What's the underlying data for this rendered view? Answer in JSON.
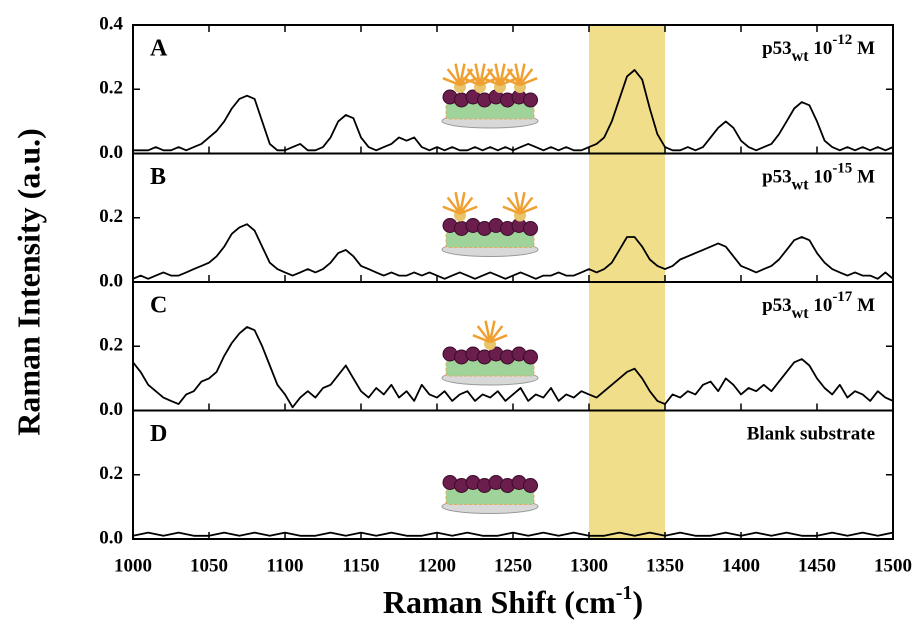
{
  "chart_data": [
    {
      "type": "line",
      "label": "A",
      "annotation": {
        "base": "p53",
        "sub": "wt",
        "mid": " 10",
        "sup": "-12",
        "end": " M"
      },
      "color": "#000000",
      "highlight": [
        1300,
        1350
      ],
      "highlight_color": "#f0de8a",
      "xlim": [
        1000,
        1500
      ],
      "ylim": [
        0,
        0.4
      ],
      "yticks": [
        {
          "value": 0,
          "label": "0.0"
        },
        0.2,
        0.4
      ],
      "x": [
        1000,
        1005,
        1010,
        1015,
        1020,
        1025,
        1030,
        1035,
        1040,
        1045,
        1050,
        1055,
        1060,
        1065,
        1070,
        1075,
        1080,
        1085,
        1090,
        1095,
        1100,
        1105,
        1110,
        1115,
        1120,
        1125,
        1130,
        1135,
        1140,
        1145,
        1150,
        1155,
        1160,
        1165,
        1170,
        1175,
        1180,
        1185,
        1190,
        1195,
        1200,
        1205,
        1210,
        1215,
        1220,
        1225,
        1230,
        1235,
        1240,
        1245,
        1250,
        1255,
        1260,
        1265,
        1270,
        1275,
        1280,
        1285,
        1290,
        1295,
        1300,
        1305,
        1310,
        1315,
        1320,
        1325,
        1330,
        1335,
        1340,
        1345,
        1350,
        1355,
        1360,
        1365,
        1370,
        1375,
        1380,
        1385,
        1390,
        1395,
        1400,
        1405,
        1410,
        1415,
        1420,
        1425,
        1430,
        1435,
        1440,
        1445,
        1450,
        1455,
        1460,
        1465,
        1470,
        1475,
        1480,
        1485,
        1490,
        1495,
        1500
      ],
      "values": [
        0.01,
        0.01,
        0.01,
        0.02,
        0.01,
        0.01,
        0.02,
        0.01,
        0.02,
        0.03,
        0.05,
        0.07,
        0.1,
        0.14,
        0.17,
        0.18,
        0.17,
        0.1,
        0.03,
        0.01,
        0.01,
        0.02,
        0.03,
        0.01,
        0.01,
        0.02,
        0.05,
        0.1,
        0.12,
        0.11,
        0.05,
        0.02,
        0.01,
        0.02,
        0.03,
        0.05,
        0.04,
        0.05,
        0.02,
        0.01,
        0.02,
        0.01,
        0.02,
        0.01,
        0.01,
        0.02,
        0.01,
        0.02,
        0.01,
        0.02,
        0.01,
        0.02,
        0.03,
        0.02,
        0.01,
        0.02,
        0.01,
        0.02,
        0.01,
        0.01,
        0.02,
        0.03,
        0.05,
        0.1,
        0.17,
        0.24,
        0.26,
        0.23,
        0.14,
        0.06,
        0.02,
        0.01,
        0.01,
        0.02,
        0.01,
        0.02,
        0.05,
        0.08,
        0.1,
        0.08,
        0.04,
        0.02,
        0.01,
        0.02,
        0.03,
        0.06,
        0.1,
        0.14,
        0.16,
        0.15,
        0.1,
        0.04,
        0.02,
        0.01,
        0.02,
        0.01,
        0.02,
        0.01,
        0.02,
        0.01,
        0.02
      ]
    },
    {
      "type": "line",
      "label": "B",
      "annotation": {
        "base": "p53",
        "sub": "wt",
        "mid": " 10",
        "sup": "-15",
        "end": " M"
      },
      "color": "#000000",
      "highlight": [
        1300,
        1350
      ],
      "highlight_color": "#f0de8a",
      "xlim": [
        1000,
        1500
      ],
      "ylim": [
        0,
        0.4
      ],
      "yticks": [
        {
          "value": 0,
          "label": "0.0"
        },
        0.2
      ],
      "x": [
        1000,
        1005,
        1010,
        1015,
        1020,
        1025,
        1030,
        1035,
        1040,
        1045,
        1050,
        1055,
        1060,
        1065,
        1070,
        1075,
        1080,
        1085,
        1090,
        1095,
        1100,
        1105,
        1110,
        1115,
        1120,
        1125,
        1130,
        1135,
        1140,
        1145,
        1150,
        1155,
        1160,
        1165,
        1170,
        1175,
        1180,
        1185,
        1190,
        1195,
        1200,
        1205,
        1210,
        1215,
        1220,
        1225,
        1230,
        1235,
        1240,
        1245,
        1250,
        1255,
        1260,
        1265,
        1270,
        1275,
        1280,
        1285,
        1290,
        1295,
        1300,
        1305,
        1310,
        1315,
        1320,
        1325,
        1330,
        1335,
        1340,
        1345,
        1350,
        1355,
        1360,
        1365,
        1370,
        1375,
        1380,
        1385,
        1390,
        1395,
        1400,
        1405,
        1410,
        1415,
        1420,
        1425,
        1430,
        1435,
        1440,
        1445,
        1450,
        1455,
        1460,
        1465,
        1470,
        1475,
        1480,
        1485,
        1490,
        1495,
        1500
      ],
      "values": [
        0.01,
        0.02,
        0.01,
        0.02,
        0.03,
        0.02,
        0.02,
        0.03,
        0.04,
        0.05,
        0.06,
        0.08,
        0.11,
        0.15,
        0.17,
        0.18,
        0.16,
        0.11,
        0.06,
        0.04,
        0.03,
        0.02,
        0.03,
        0.04,
        0.03,
        0.04,
        0.06,
        0.09,
        0.1,
        0.08,
        0.05,
        0.04,
        0.03,
        0.02,
        0.03,
        0.02,
        0.02,
        0.03,
        0.02,
        0.03,
        0.02,
        0.01,
        0.02,
        0.03,
        0.02,
        0.01,
        0.02,
        0.03,
        0.02,
        0.01,
        0.02,
        0.03,
        0.02,
        0.01,
        0.02,
        0.02,
        0.03,
        0.02,
        0.02,
        0.03,
        0.04,
        0.03,
        0.04,
        0.06,
        0.1,
        0.14,
        0.14,
        0.11,
        0.07,
        0.05,
        0.04,
        0.05,
        0.07,
        0.08,
        0.09,
        0.1,
        0.11,
        0.12,
        0.11,
        0.08,
        0.05,
        0.04,
        0.03,
        0.04,
        0.05,
        0.07,
        0.1,
        0.13,
        0.14,
        0.13,
        0.09,
        0.06,
        0.04,
        0.03,
        0.02,
        0.03,
        0.02,
        0.02,
        0.01,
        0.03,
        0.01
      ]
    },
    {
      "type": "line",
      "label": "C",
      "annotation": {
        "base": "p53",
        "sub": "wt",
        "mid": " 10",
        "sup": "-17",
        "end": " M"
      },
      "color": "#000000",
      "highlight": [
        1300,
        1350
      ],
      "highlight_color": "#f0de8a",
      "xlim": [
        1000,
        1500
      ],
      "ylim": [
        0,
        0.4
      ],
      "yticks": [
        {
          "value": 0,
          "label": "0.0"
        },
        0.2
      ],
      "x": [
        1000,
        1005,
        1010,
        1015,
        1020,
        1025,
        1030,
        1035,
        1040,
        1045,
        1050,
        1055,
        1060,
        1065,
        1070,
        1075,
        1080,
        1085,
        1090,
        1095,
        1100,
        1105,
        1110,
        1115,
        1120,
        1125,
        1130,
        1135,
        1140,
        1145,
        1150,
        1155,
        1160,
        1165,
        1170,
        1175,
        1180,
        1185,
        1190,
        1195,
        1200,
        1205,
        1210,
        1215,
        1220,
        1225,
        1230,
        1235,
        1240,
        1245,
        1250,
        1255,
        1260,
        1265,
        1270,
        1275,
        1280,
        1285,
        1290,
        1295,
        1300,
        1305,
        1310,
        1315,
        1320,
        1325,
        1330,
        1335,
        1340,
        1345,
        1350,
        1355,
        1360,
        1365,
        1370,
        1375,
        1380,
        1385,
        1390,
        1395,
        1400,
        1405,
        1410,
        1415,
        1420,
        1425,
        1430,
        1435,
        1440,
        1445,
        1450,
        1455,
        1460,
        1465,
        1470,
        1475,
        1480,
        1485,
        1490,
        1495,
        1500
      ],
      "values": [
        0.15,
        0.12,
        0.08,
        0.06,
        0.04,
        0.03,
        0.02,
        0.05,
        0.06,
        0.09,
        0.1,
        0.12,
        0.17,
        0.21,
        0.24,
        0.26,
        0.25,
        0.2,
        0.14,
        0.08,
        0.05,
        0.01,
        0.04,
        0.06,
        0.04,
        0.07,
        0.08,
        0.11,
        0.14,
        0.1,
        0.06,
        0.04,
        0.07,
        0.05,
        0.08,
        0.04,
        0.06,
        0.03,
        0.08,
        0.05,
        0.04,
        0.06,
        0.03,
        0.05,
        0.06,
        0.03,
        0.05,
        0.04,
        0.06,
        0.03,
        0.05,
        0.07,
        0.03,
        0.05,
        0.04,
        0.07,
        0.03,
        0.05,
        0.04,
        0.06,
        0.05,
        0.04,
        0.06,
        0.08,
        0.1,
        0.12,
        0.13,
        0.1,
        0.06,
        0.03,
        0.02,
        0.05,
        0.04,
        0.06,
        0.05,
        0.08,
        0.09,
        0.06,
        0.1,
        0.08,
        0.05,
        0.07,
        0.06,
        0.08,
        0.06,
        0.09,
        0.12,
        0.15,
        0.16,
        0.14,
        0.1,
        0.07,
        0.05,
        0.08,
        0.04,
        0.06,
        0.05,
        0.03,
        0.06,
        0.04,
        0.03
      ]
    },
    {
      "type": "line",
      "label": "D",
      "annotation": {
        "base": "Blank substrate"
      },
      "color": "#000000",
      "highlight": [
        1300,
        1350
      ],
      "highlight_color": "#f0de8a",
      "xlim": [
        1000,
        1500
      ],
      "ylim": [
        0,
        0.4
      ],
      "yticks": [
        {
          "value": 0,
          "label": "0.0"
        },
        0.2
      ],
      "xticks": [
        1000,
        1050,
        1100,
        1150,
        1200,
        1250,
        1300,
        1350,
        1400,
        1450,
        1500
      ],
      "xlabel": {
        "text": "Raman Shift (cm",
        "sup": "-1",
        "end": ")"
      },
      "ylabel": "Raman Intensity (a.u.)",
      "x": [
        1000,
        1010,
        1020,
        1030,
        1040,
        1050,
        1060,
        1070,
        1080,
        1090,
        1100,
        1110,
        1120,
        1130,
        1140,
        1150,
        1160,
        1170,
        1180,
        1190,
        1200,
        1210,
        1220,
        1230,
        1240,
        1250,
        1260,
        1270,
        1280,
        1290,
        1300,
        1310,
        1320,
        1330,
        1340,
        1350,
        1360,
        1370,
        1380,
        1390,
        1400,
        1410,
        1420,
        1430,
        1440,
        1450,
        1460,
        1470,
        1480,
        1490,
        1500
      ],
      "values": [
        0.01,
        0.02,
        0.01,
        0.02,
        0.01,
        0.01,
        0.02,
        0.01,
        0.02,
        0.01,
        0.02,
        0.01,
        0.01,
        0.02,
        0.01,
        0.02,
        0.01,
        0.02,
        0.01,
        0.01,
        0.02,
        0.01,
        0.02,
        0.01,
        0.01,
        0.02,
        0.01,
        0.02,
        0.01,
        0.02,
        0.01,
        0.01,
        0.02,
        0.01,
        0.02,
        0.01,
        0.02,
        0.01,
        0.01,
        0.02,
        0.01,
        0.02,
        0.01,
        0.02,
        0.01,
        0.01,
        0.02,
        0.01,
        0.02,
        0.01,
        0.02
      ]
    }
  ]
}
